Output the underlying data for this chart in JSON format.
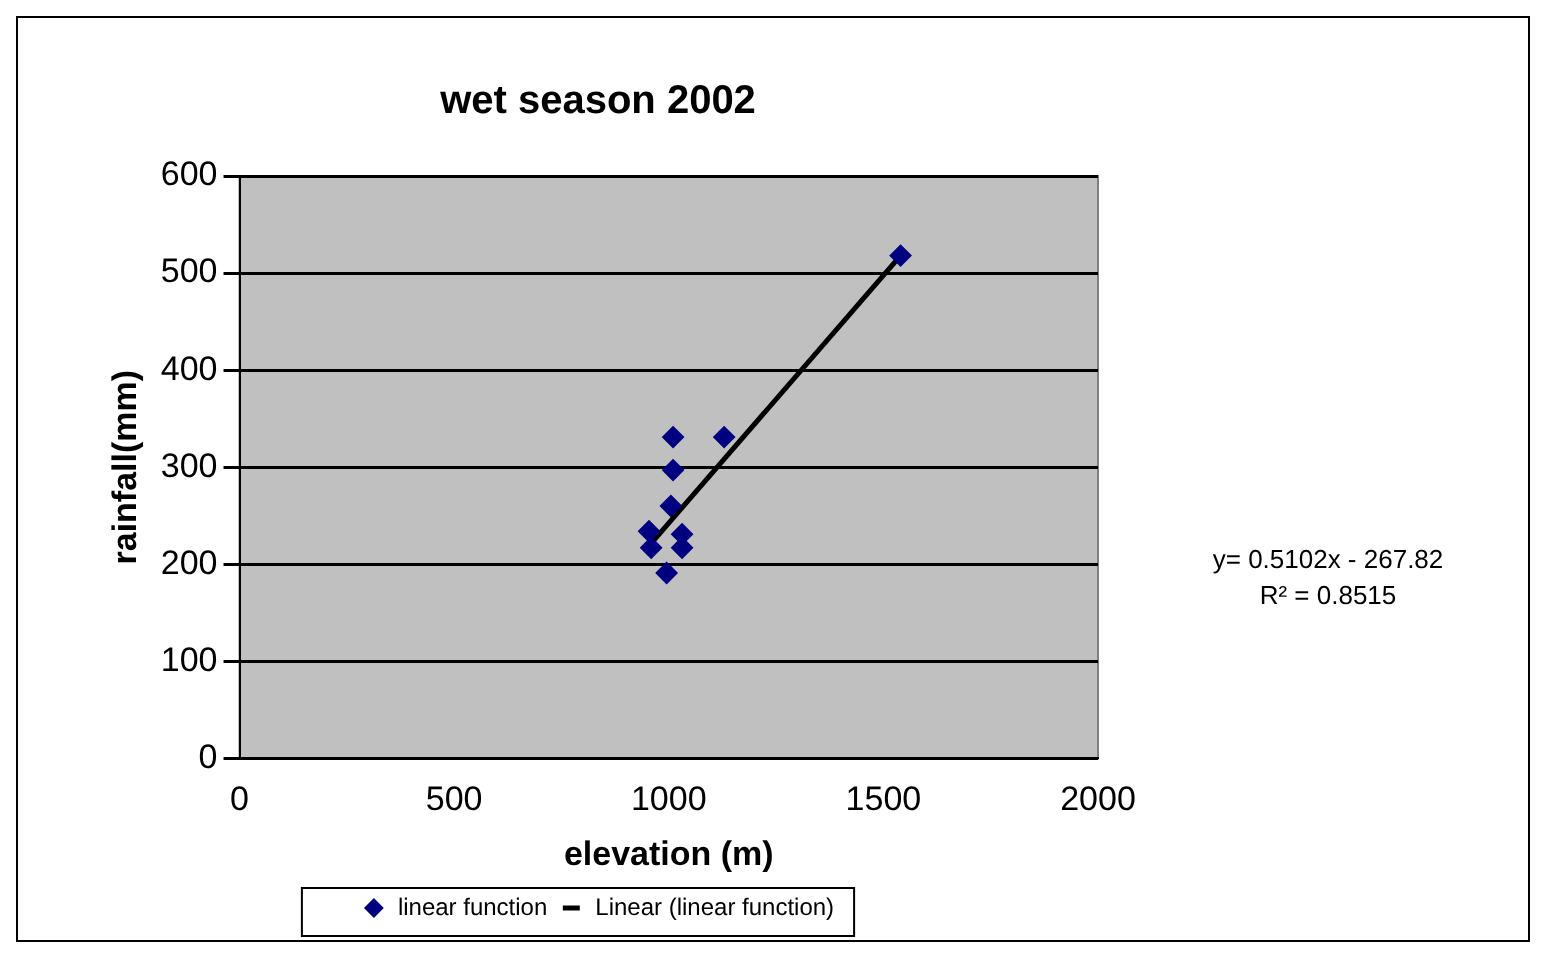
{
  "chart_data": {
    "type": "scatter",
    "title": "wet season 2002",
    "xlabel": "elevation (m)",
    "ylabel": "rainfall(mm)",
    "series": [
      {
        "name": "linear function",
        "color": "#000080",
        "marker": "diamond",
        "x": [
          1010,
          1010,
          1129,
          954,
          959,
          995,
          1031,
          1031,
          1005,
          1540
        ],
        "values": [
          331,
          297,
          331,
          234,
          217,
          191,
          231,
          217,
          260,
          518
        ]
      },
      {
        "name": "Linear (linear function)",
        "color": "#000000",
        "type": "line",
        "x": [
          954,
          1540
        ],
        "values": [
          219,
          518
        ]
      }
    ],
    "xlim": [
      0,
      2000
    ],
    "xticks": [
      0,
      500,
      1000,
      1500,
      2000
    ],
    "ylim": [
      0,
      600
    ],
    "yticks": [
      0,
      100,
      200,
      300,
      400,
      500,
      600
    ],
    "grid": "y",
    "legend": "bottom",
    "annotations": [
      "y= 0.5102x - 267.82",
      "R² = 0.8515"
    ]
  }
}
